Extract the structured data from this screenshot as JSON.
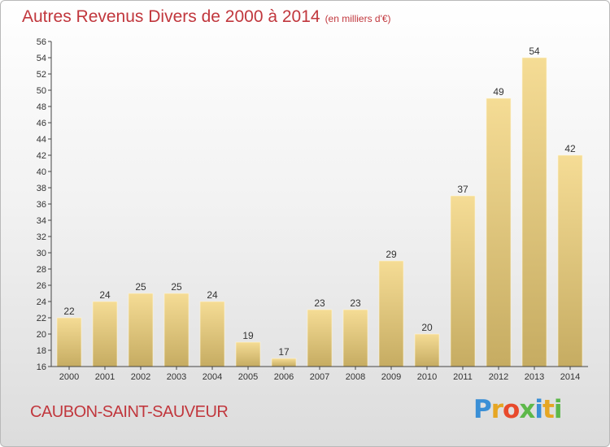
{
  "colors": {
    "title": "#c1373d",
    "bar_light": "#f5dc95",
    "bar_dark": "#c6ac62",
    "axis": "#444444",
    "logo": [
      "#3a8fd6",
      "#e6a623",
      "#e84a2c",
      "#5db84a",
      "#3a8fd6",
      "#e6a623",
      "#5db84a"
    ]
  },
  "chart_data": {
    "type": "bar",
    "title": "Autres Revenus Divers de 2000 à 2014",
    "subtitle": "(en milliers d'€)",
    "categories": [
      "2000",
      "2001",
      "2002",
      "2003",
      "2004",
      "2005",
      "2006",
      "2007",
      "2008",
      "2009",
      "2010",
      "2011",
      "2012",
      "2013",
      "2014"
    ],
    "values": [
      22,
      24,
      25,
      25,
      24,
      19,
      17,
      23,
      23,
      29,
      20,
      37,
      49,
      54,
      42
    ],
    "ylim": [
      16,
      56
    ],
    "yticks": [
      16,
      18,
      20,
      22,
      24,
      26,
      28,
      30,
      32,
      34,
      36,
      38,
      40,
      42,
      44,
      46,
      48,
      50,
      52,
      54,
      56
    ],
    "grid": false,
    "legend": "none"
  },
  "footer": {
    "location": "CAUBON-SAINT-SAUVEUR",
    "logo": "Proxiti"
  }
}
